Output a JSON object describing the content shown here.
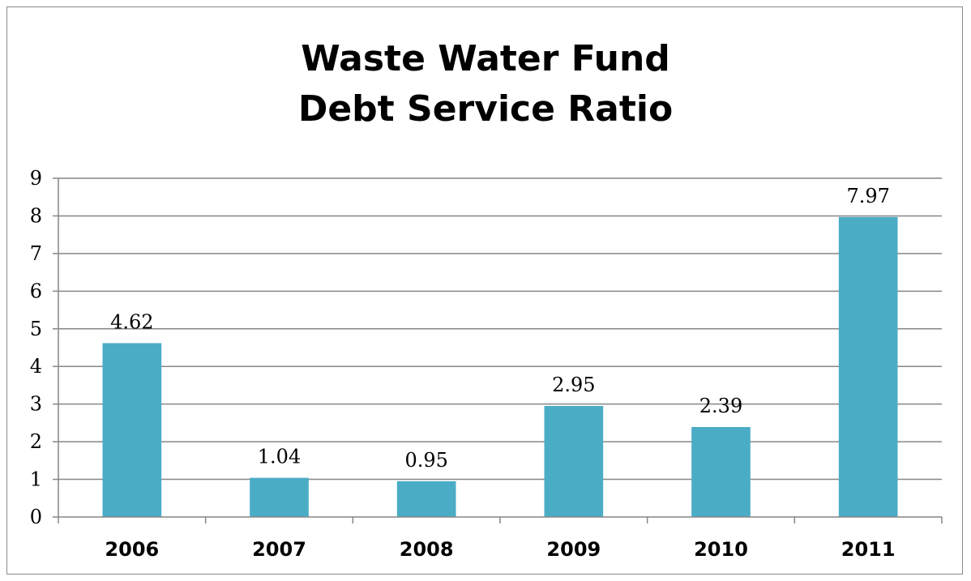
{
  "chart_data": {
    "type": "bar",
    "title_lines": [
      "Waste Water Fund",
      "Debt Service Ratio"
    ],
    "categories": [
      "2006",
      "2007",
      "2008",
      "2009",
      "2010",
      "2011"
    ],
    "values": [
      4.62,
      1.04,
      0.95,
      2.95,
      2.39,
      7.97
    ],
    "data_labels": [
      "4.62",
      "1.04",
      "0.95",
      "2.95",
      "2.39",
      "7.97"
    ],
    "y_ticks": [
      "0",
      "1",
      "2",
      "3",
      "4",
      "5",
      "6",
      "7",
      "8",
      "9"
    ],
    "ylim": [
      0,
      9
    ],
    "grid": true,
    "legend": "none",
    "bar_color": "#4bacc6"
  }
}
